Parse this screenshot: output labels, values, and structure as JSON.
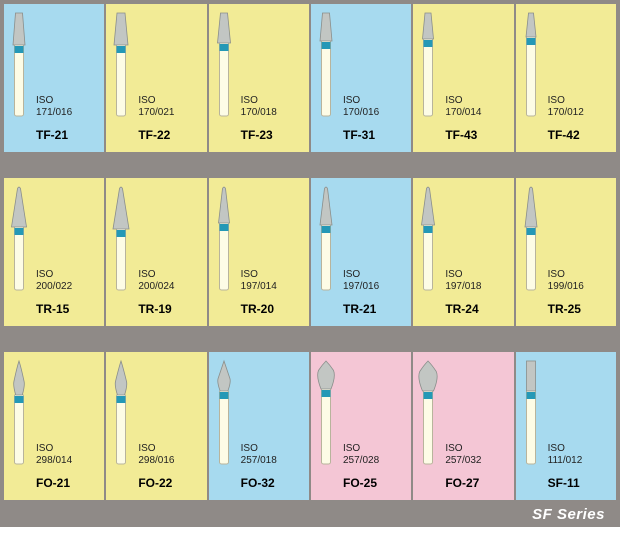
{
  "catalog": {
    "footer_label": "SF Series",
    "colors": {
      "yellow": "#f2eb96",
      "blue": "#a7daef",
      "pink": "#f4c6d5",
      "frame": "#8f8a87",
      "shank": "#fdfce6",
      "shank_outline": "#b8b49c",
      "tip_fill": "#c2c6c3",
      "tip_outline": "#8a8e8b",
      "band": "#2498b6"
    },
    "rows": [
      [
        {
          "bg": "blue",
          "iso1": "ISO",
          "iso2": "171/016",
          "model": "TF-21",
          "shape": "flat_taper",
          "tip_h": 32,
          "bot_w": 12,
          "top_w": 7
        },
        {
          "bg": "yellow",
          "iso1": "ISO",
          "iso2": "170/021",
          "model": "TF-22",
          "shape": "flat_taper",
          "tip_h": 32,
          "bot_w": 14,
          "top_w": 8
        },
        {
          "bg": "yellow",
          "iso1": "ISO",
          "iso2": "170/018",
          "model": "TF-23",
          "shape": "flat_taper",
          "tip_h": 30,
          "bot_w": 13,
          "top_w": 7
        },
        {
          "bg": "blue",
          "iso1": "ISO",
          "iso2": "170/016",
          "model": "TF-31",
          "shape": "flat_taper",
          "tip_h": 28,
          "bot_w": 12,
          "top_w": 7
        },
        {
          "bg": "yellow",
          "iso1": "ISO",
          "iso2": "170/014",
          "model": "TF-43",
          "shape": "flat_taper",
          "tip_h": 26,
          "bot_w": 11,
          "top_w": 6
        },
        {
          "bg": "yellow",
          "iso1": "ISO",
          "iso2": "170/012",
          "model": "TF-42",
          "shape": "flat_taper",
          "tip_h": 24,
          "bot_w": 10,
          "top_w": 5
        }
      ],
      [
        {
          "bg": "yellow",
          "iso1": "ISO",
          "iso2": "200/022",
          "model": "TR-15",
          "shape": "round_taper",
          "tip_h": 40,
          "bot_w": 15,
          "top_w": 3
        },
        {
          "bg": "yellow",
          "iso1": "ISO",
          "iso2": "200/024",
          "model": "TR-19",
          "shape": "round_taper",
          "tip_h": 42,
          "bot_w": 16,
          "top_w": 3
        },
        {
          "bg": "yellow",
          "iso1": "ISO",
          "iso2": "197/014",
          "model": "TR-20",
          "shape": "round_taper",
          "tip_h": 36,
          "bot_w": 11,
          "top_w": 3
        },
        {
          "bg": "blue",
          "iso1": "ISO",
          "iso2": "197/016",
          "model": "TR-21",
          "shape": "round_taper",
          "tip_h": 38,
          "bot_w": 12,
          "top_w": 3
        },
        {
          "bg": "yellow",
          "iso1": "ISO",
          "iso2": "197/018",
          "model": "TR-24",
          "shape": "round_taper",
          "tip_h": 38,
          "bot_w": 13,
          "top_w": 3
        },
        {
          "bg": "yellow",
          "iso1": "ISO",
          "iso2": "199/016",
          "model": "TR-25",
          "shape": "round_taper",
          "tip_h": 40,
          "bot_w": 12,
          "top_w": 3
        }
      ],
      [
        {
          "bg": "yellow",
          "iso1": "ISO",
          "iso2": "298/014",
          "model": "FO-21",
          "shape": "flame",
          "tip_h": 34,
          "bot_w": 12,
          "top_w": 2
        },
        {
          "bg": "yellow",
          "iso1": "ISO",
          "iso2": "298/016",
          "model": "FO-22",
          "shape": "flame",
          "tip_h": 34,
          "bot_w": 13,
          "top_w": 2
        },
        {
          "bg": "blue",
          "iso1": "ISO",
          "iso2": "257/018",
          "model": "FO-32",
          "shape": "flame",
          "tip_h": 30,
          "bot_w": 14,
          "top_w": 2
        },
        {
          "bg": "pink",
          "iso1": "ISO",
          "iso2": "257/028",
          "model": "FO-25",
          "shape": "egg",
          "tip_h": 28,
          "bot_w": 20,
          "top_w": 4
        },
        {
          "bg": "pink",
          "iso1": "ISO",
          "iso2": "257/032",
          "model": "FO-27",
          "shape": "egg",
          "tip_h": 30,
          "bot_w": 22,
          "top_w": 4
        },
        {
          "bg": "blue",
          "iso1": "ISO",
          "iso2": "111/012",
          "model": "SF-11",
          "shape": "cylinder",
          "tip_h": 30,
          "bot_w": 9,
          "top_w": 9
        }
      ]
    ]
  }
}
